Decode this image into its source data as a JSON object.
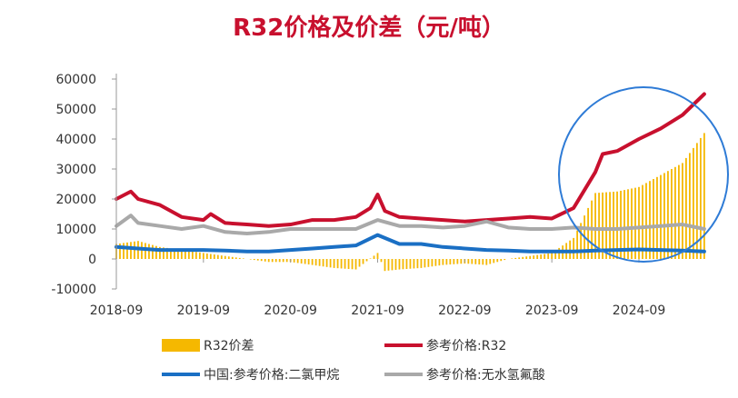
{
  "chart_data": {
    "type": "line",
    "title": "R32价格及价差（元/吨）",
    "ylim": [
      -10000,
      60000
    ],
    "yticks": [
      -10000,
      0,
      10000,
      20000,
      30000,
      40000,
      50000,
      60000
    ],
    "ytick_labels": [
      "-10000",
      "0",
      "10000",
      "20000",
      "30000",
      "40000",
      "50000",
      "60000"
    ],
    "x_range": [
      "2018-09",
      "2025-06"
    ],
    "xtick_labels": [
      "2018-09",
      "2019-09",
      "2020-09",
      "2021-09",
      "2022-09",
      "2023-09",
      "2024-09"
    ],
    "grid": false,
    "legend_position": "bottom",
    "series": [
      {
        "name": "R32价差",
        "kind": "bar",
        "color": "#f5b800",
        "x": [
          "2018-09",
          "2018-12",
          "2019-03",
          "2019-06",
          "2019-09",
          "2019-12",
          "2020-03",
          "2020-06",
          "2020-09",
          "2020-12",
          "2021-03",
          "2021-06",
          "2021-09",
          "2021-10",
          "2021-12",
          "2022-03",
          "2022-06",
          "2022-09",
          "2022-12",
          "2023-03",
          "2023-06",
          "2023-09",
          "2023-12",
          "2024-03",
          "2024-06",
          "2024-09",
          "2024-12",
          "2025-03",
          "2025-06"
        ],
        "values": [
          5000,
          6000,
          4000,
          3000,
          2000,
          1000,
          0,
          -1000,
          -1000,
          -2000,
          -3000,
          -3500,
          2000,
          -4000,
          -3500,
          -3000,
          -2000,
          -1500,
          -2000,
          0,
          1000,
          2000,
          7000,
          22000,
          22500,
          24000,
          28000,
          32000,
          42000
        ]
      },
      {
        "name": "参考价格:R32",
        "kind": "line",
        "color": "#c8102e",
        "x": [
          "2018-09",
          "2018-11",
          "2018-12",
          "2019-03",
          "2019-06",
          "2019-09",
          "2019-10",
          "2019-12",
          "2020-03",
          "2020-06",
          "2020-09",
          "2020-12",
          "2021-03",
          "2021-06",
          "2021-08",
          "2021-09",
          "2021-10",
          "2021-12",
          "2022-03",
          "2022-06",
          "2022-09",
          "2022-12",
          "2023-03",
          "2023-06",
          "2023-09",
          "2023-12",
          "2024-03",
          "2024-04",
          "2024-06",
          "2024-09",
          "2024-12",
          "2025-03",
          "2025-06"
        ],
        "values": [
          20000,
          22500,
          20000,
          18000,
          14000,
          13000,
          15000,
          12000,
          11500,
          11000,
          11500,
          13000,
          13000,
          14000,
          17000,
          21500,
          16000,
          14000,
          13500,
          13000,
          12500,
          13000,
          13500,
          14000,
          13500,
          17000,
          29000,
          35000,
          36000,
          40000,
          43500,
          48000,
          55000
        ]
      },
      {
        "name": "参考价格:无水氢氟酸",
        "kind": "line",
        "color": "#a9a9a9",
        "x": [
          "2018-09",
          "2018-11",
          "2018-12",
          "2019-03",
          "2019-06",
          "2019-09",
          "2019-12",
          "2020-03",
          "2020-06",
          "2020-09",
          "2020-12",
          "2021-03",
          "2021-06",
          "2021-09",
          "2021-12",
          "2022-03",
          "2022-06",
          "2022-09",
          "2022-12",
          "2023-03",
          "2023-06",
          "2023-09",
          "2023-12",
          "2024-03",
          "2024-06",
          "2024-09",
          "2024-12",
          "2025-03",
          "2025-06"
        ],
        "values": [
          11000,
          14500,
          12000,
          11000,
          10000,
          11000,
          9000,
          8500,
          9000,
          10000,
          10000,
          10000,
          10000,
          13000,
          11000,
          11000,
          10500,
          11000,
          12500,
          10500,
          10000,
          10000,
          10500,
          10000,
          10000,
          10500,
          11000,
          11500,
          10000
        ]
      },
      {
        "name": "中国:参考价格:二氯甲烷",
        "kind": "line",
        "color": "#1a6fc4",
        "x": [
          "2018-09",
          "2018-12",
          "2019-03",
          "2019-06",
          "2019-09",
          "2019-12",
          "2020-03",
          "2020-06",
          "2020-09",
          "2020-12",
          "2021-03",
          "2021-06",
          "2021-09",
          "2021-12",
          "2022-03",
          "2022-06",
          "2022-09",
          "2022-12",
          "2023-03",
          "2023-06",
          "2023-09",
          "2023-12",
          "2024-03",
          "2024-06",
          "2024-09",
          "2024-12",
          "2025-03",
          "2025-06"
        ],
        "values": [
          4000,
          3500,
          3000,
          3000,
          3000,
          2800,
          2500,
          2500,
          3000,
          3500,
          4000,
          4500,
          8000,
          5000,
          5000,
          4000,
          3500,
          3000,
          2800,
          2500,
          2500,
          2500,
          2800,
          3000,
          3200,
          3000,
          2800,
          2500
        ]
      }
    ]
  },
  "legend": {
    "items": [
      {
        "label": "R32价差",
        "color": "#f5b800",
        "kind": "bar"
      },
      {
        "label": "参考价格:R32",
        "color": "#c8102e",
        "kind": "line"
      },
      {
        "label": "中国:参考价格:二氯甲烷",
        "color": "#1a6fc4",
        "kind": "line"
      },
      {
        "label": "参考价格:无水氢氟酸",
        "color": "#a9a9a9",
        "kind": "line"
      }
    ]
  },
  "annotation": {
    "shape": "ellipse",
    "color": "#2e7bd6"
  }
}
